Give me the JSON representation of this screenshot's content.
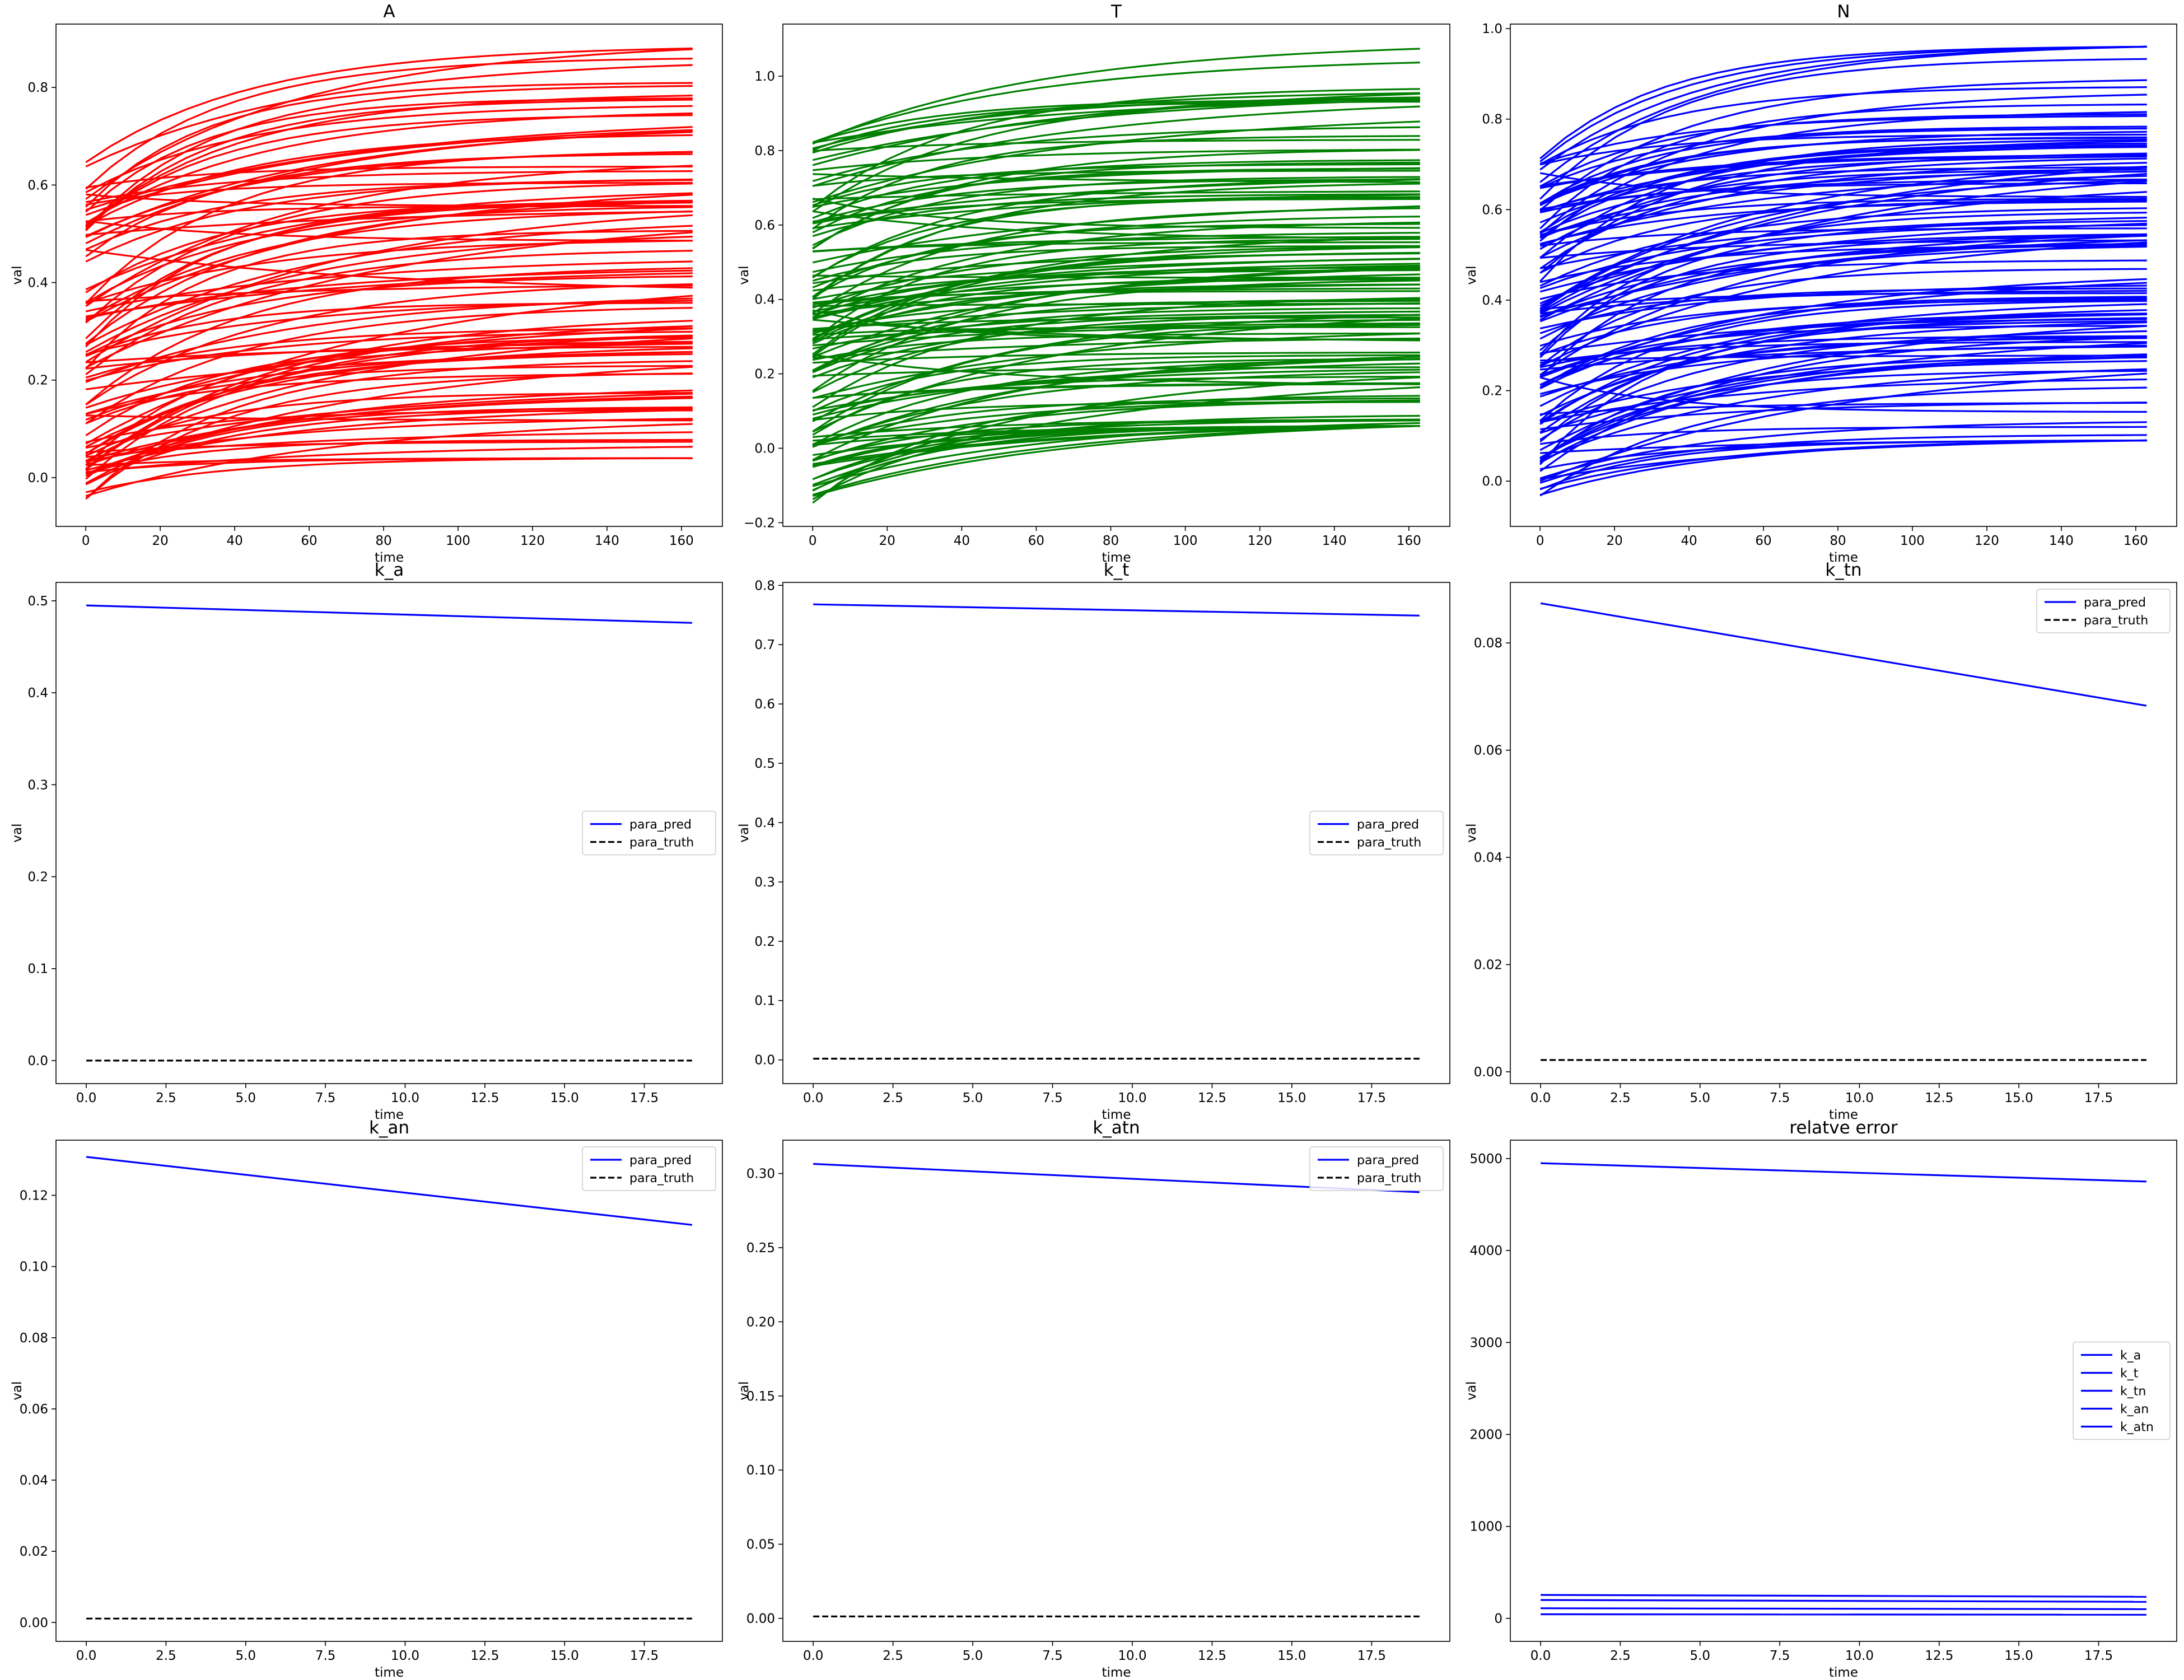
{
  "chart_data": [
    {
      "type": "line",
      "title": "A",
      "xlabel": "time",
      "ylabel": "val",
      "xlim": [
        -8,
        171
      ],
      "ylim": [
        -0.1,
        0.93
      ],
      "xticks": [
        0,
        20,
        40,
        60,
        80,
        100,
        120,
        140,
        160
      ],
      "yticks": [
        0.0,
        0.2,
        0.4,
        0.6,
        0.8
      ],
      "ytick_labels": [
        "0.0",
        "0.2",
        "0.4",
        "0.6",
        "0.8"
      ],
      "color": "#ff0000",
      "line_count": 100,
      "x_range": [
        0,
        163
      ],
      "start_range": [
        -0.05,
        0.65
      ],
      "end_range": [
        0.04,
        0.88
      ],
      "legend": null
    },
    {
      "type": "line",
      "title": "T",
      "xlabel": "time",
      "ylabel": "val",
      "xlim": [
        -8,
        171
      ],
      "ylim": [
        -0.21,
        1.14
      ],
      "xticks": [
        0,
        20,
        40,
        60,
        80,
        100,
        120,
        140,
        160
      ],
      "yticks": [
        -0.2,
        0.0,
        0.2,
        0.4,
        0.6,
        0.8,
        1.0
      ],
      "ytick_labels": [
        "−0.2",
        "0.0",
        "0.2",
        "0.4",
        "0.6",
        "0.8",
        "1.0"
      ],
      "color": "#008000",
      "line_count": 130,
      "x_range": [
        0,
        163
      ],
      "start_range": [
        -0.15,
        0.83
      ],
      "end_range": [
        0.06,
        1.08
      ],
      "legend": null
    },
    {
      "type": "line",
      "title": "N",
      "xlabel": "time",
      "ylabel": "val",
      "xlim": [
        -8,
        171
      ],
      "ylim": [
        -0.1,
        1.01
      ],
      "xticks": [
        0,
        20,
        40,
        60,
        80,
        100,
        120,
        140,
        160
      ],
      "yticks": [
        0.0,
        0.2,
        0.4,
        0.6,
        0.8,
        1.0
      ],
      "ytick_labels": [
        "0.0",
        "0.2",
        "0.4",
        "0.6",
        "0.8",
        "1.0"
      ],
      "color": "#0000ff",
      "line_count": 120,
      "x_range": [
        0,
        163
      ],
      "start_range": [
        -0.05,
        0.72
      ],
      "end_range": [
        0.09,
        0.96
      ],
      "legend": null
    },
    {
      "type": "line",
      "title": "k_a",
      "xlabel": "time",
      "ylabel": "val",
      "xlim": [
        -0.95,
        19.95
      ],
      "ylim": [
        -0.025,
        0.52
      ],
      "xticks": [
        0,
        2.5,
        5,
        7.5,
        10,
        12.5,
        15,
        17.5
      ],
      "xtick_labels": [
        "0.0",
        "2.5",
        "5.0",
        "7.5",
        "10.0",
        "12.5",
        "15.0",
        "17.5"
      ],
      "yticks": [
        0.0,
        0.1,
        0.2,
        0.3,
        0.4,
        0.5
      ],
      "ytick_labels": [
        "0.0",
        "0.1",
        "0.2",
        "0.3",
        "0.4",
        "0.5"
      ],
      "series": [
        {
          "name": "para_pred",
          "color": "#0000ff",
          "dash": "solid",
          "x": [
            0,
            19
          ],
          "y": [
            0.495,
            0.476
          ]
        },
        {
          "name": "para_truth",
          "color": "#000000",
          "dash": "dashed",
          "x": [
            0,
            19
          ],
          "y": [
            0.0,
            0.0
          ]
        }
      ],
      "legend": "center-right"
    },
    {
      "type": "line",
      "title": "k_t",
      "xlabel": "time",
      "ylabel": "val",
      "xlim": [
        -0.95,
        19.95
      ],
      "ylim": [
        -0.04,
        0.805
      ],
      "xticks": [
        0,
        2.5,
        5,
        7.5,
        10,
        12.5,
        15,
        17.5
      ],
      "xtick_labels": [
        "0.0",
        "2.5",
        "5.0",
        "7.5",
        "10.0",
        "12.5",
        "15.0",
        "17.5"
      ],
      "yticks": [
        0.0,
        0.1,
        0.2,
        0.3,
        0.4,
        0.5,
        0.6,
        0.7,
        0.8
      ],
      "ytick_labels": [
        "0.0",
        "0.1",
        "0.2",
        "0.3",
        "0.4",
        "0.5",
        "0.6",
        "0.7",
        "0.8"
      ],
      "series": [
        {
          "name": "para_pred",
          "color": "#0000ff",
          "dash": "solid",
          "x": [
            0,
            19
          ],
          "y": [
            0.768,
            0.749
          ]
        },
        {
          "name": "para_truth",
          "color": "#000000",
          "dash": "dashed",
          "x": [
            0,
            19
          ],
          "y": [
            0.002,
            0.002
          ]
        }
      ],
      "legend": "center-right"
    },
    {
      "type": "line",
      "title": "k_tn",
      "xlabel": "time",
      "ylabel": "val",
      "xlim": [
        -0.95,
        19.95
      ],
      "ylim": [
        -0.0022,
        0.0913
      ],
      "xticks": [
        0,
        2.5,
        5,
        7.5,
        10,
        12.5,
        15,
        17.5
      ],
      "xtick_labels": [
        "0.0",
        "2.5",
        "5.0",
        "7.5",
        "10.0",
        "12.5",
        "15.0",
        "17.5"
      ],
      "yticks": [
        0.0,
        0.02,
        0.04,
        0.06,
        0.08
      ],
      "ytick_labels": [
        "0.00",
        "0.02",
        "0.04",
        "0.06",
        "0.08"
      ],
      "series": [
        {
          "name": "para_pred",
          "color": "#0000ff",
          "dash": "solid",
          "x": [
            0,
            19
          ],
          "y": [
            0.0874,
            0.0683
          ]
        },
        {
          "name": "para_truth",
          "color": "#000000",
          "dash": "dashed",
          "x": [
            0,
            19
          ],
          "y": [
            0.0022,
            0.0022
          ]
        }
      ],
      "legend": "upper-right"
    },
    {
      "type": "line",
      "title": "k_an",
      "xlabel": "time",
      "ylabel": "val",
      "xlim": [
        -0.95,
        19.95
      ],
      "ylim": [
        -0.0053,
        0.1355
      ],
      "xticks": [
        0,
        2.5,
        5,
        7.5,
        10,
        12.5,
        15,
        17.5
      ],
      "xtick_labels": [
        "0.0",
        "2.5",
        "5.0",
        "7.5",
        "10.0",
        "12.5",
        "15.0",
        "17.5"
      ],
      "yticks": [
        0.0,
        0.02,
        0.04,
        0.06,
        0.08,
        0.1,
        0.12
      ],
      "ytick_labels": [
        "0.00",
        "0.02",
        "0.04",
        "0.06",
        "0.08",
        "0.10",
        "0.12"
      ],
      "series": [
        {
          "name": "para_pred",
          "color": "#0000ff",
          "dash": "solid",
          "x": [
            0,
            19
          ],
          "y": [
            0.1308,
            0.1117
          ]
        },
        {
          "name": "para_truth",
          "color": "#000000",
          "dash": "dashed",
          "x": [
            0,
            19
          ],
          "y": [
            0.0011,
            0.0011
          ]
        }
      ],
      "legend": "upper-right"
    },
    {
      "type": "line",
      "title": "k_atn",
      "xlabel": "time",
      "ylabel": "val",
      "xlim": [
        -0.95,
        19.95
      ],
      "ylim": [
        -0.0155,
        0.3225
      ],
      "xticks": [
        0,
        2.5,
        5,
        7.5,
        10,
        12.5,
        15,
        17.5
      ],
      "xtick_labels": [
        "0.0",
        "2.5",
        "5.0",
        "7.5",
        "10.0",
        "12.5",
        "15.0",
        "17.5"
      ],
      "yticks": [
        0.0,
        0.05,
        0.1,
        0.15,
        0.2,
        0.25,
        0.3
      ],
      "ytick_labels": [
        "0.00",
        "0.05",
        "0.10",
        "0.15",
        "0.20",
        "0.25",
        "0.30"
      ],
      "series": [
        {
          "name": "para_pred",
          "color": "#0000ff",
          "dash": "solid",
          "x": [
            0,
            19
          ],
          "y": [
            0.3065,
            0.2874
          ]
        },
        {
          "name": "para_truth",
          "color": "#000000",
          "dash": "dashed",
          "x": [
            0,
            19
          ],
          "y": [
            0.0013,
            0.0013
          ]
        }
      ],
      "legend": "upper-right"
    },
    {
      "type": "line",
      "title": "relatve error",
      "xlabel": "time",
      "ylabel": "val",
      "xlim": [
        -0.95,
        19.95
      ],
      "ylim": [
        -250,
        5200
      ],
      "xticks": [
        0,
        2.5,
        5,
        7.5,
        10,
        12.5,
        15,
        17.5
      ],
      "xtick_labels": [
        "0.0",
        "2.5",
        "5.0",
        "7.5",
        "10.0",
        "12.5",
        "15.0",
        "17.5"
      ],
      "yticks": [
        0,
        1000,
        2000,
        3000,
        4000,
        5000
      ],
      "ytick_labels": [
        "0",
        "1000",
        "2000",
        "3000",
        "4000",
        "5000"
      ],
      "series": [
        {
          "name": "k_a",
          "color": "#0000ff",
          "dash": "solid",
          "x": [
            0,
            19
          ],
          "y": [
            4950,
            4750
          ]
        },
        {
          "name": "k_t",
          "color": "#0000ff",
          "dash": "solid",
          "x": [
            0,
            19
          ],
          "y": [
            255,
            235
          ]
        },
        {
          "name": "k_tn",
          "color": "#0000ff",
          "dash": "solid",
          "x": [
            0,
            19
          ],
          "y": [
            200,
            180
          ]
        },
        {
          "name": "k_an",
          "color": "#0000ff",
          "dash": "solid",
          "x": [
            0,
            19
          ],
          "y": [
            110,
            100
          ]
        },
        {
          "name": "k_atn",
          "color": "#0000ff",
          "dash": "solid",
          "x": [
            0,
            19
          ],
          "y": [
            45,
            40
          ]
        }
      ],
      "legend": "center-right"
    }
  ]
}
